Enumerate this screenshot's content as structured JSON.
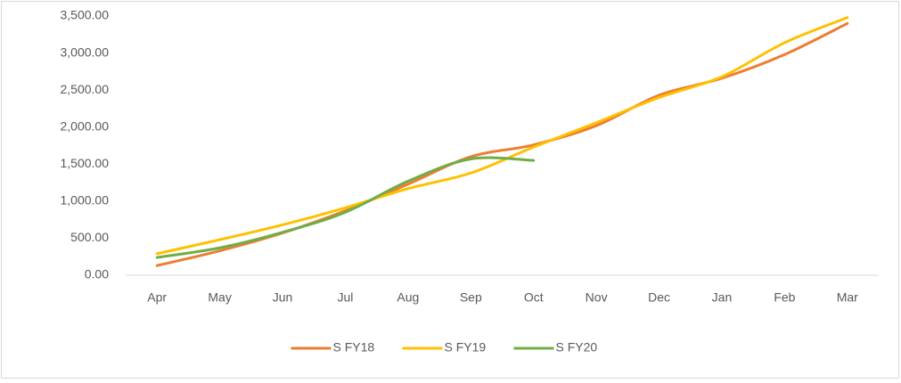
{
  "chart_data": {
    "type": "line",
    "categories": [
      "Apr",
      "May",
      "Jun",
      "Jul",
      "Aug",
      "Sep",
      "Oct",
      "Nov",
      "Dec",
      "Jan",
      "Feb",
      "Mar"
    ],
    "series": [
      {
        "name": "S FY18",
        "color": "#ED7D31",
        "values": [
          130,
          330,
          570,
          870,
          1230,
          1600,
          1760,
          2020,
          2430,
          2660,
          2980,
          3400
        ]
      },
      {
        "name": "S FY19",
        "color": "#FFC000",
        "values": [
          290,
          480,
          680,
          910,
          1170,
          1380,
          1730,
          2060,
          2400,
          2680,
          3140,
          3480
        ]
      },
      {
        "name": "S FY20",
        "color": "#70AD47",
        "values": [
          240,
          370,
          580,
          850,
          1270,
          1570,
          1550,
          null,
          null,
          null,
          null,
          null
        ]
      }
    ],
    "ylim": [
      0,
      3500
    ],
    "yticks": [
      {
        "value": 0,
        "label": "0.00"
      },
      {
        "value": 500,
        "label": "500.00"
      },
      {
        "value": 1000,
        "label": "1,000.00"
      },
      {
        "value": 1500,
        "label": "1,500.00"
      },
      {
        "value": 2000,
        "label": "2,000.00"
      },
      {
        "value": 2500,
        "label": "2,500.00"
      },
      {
        "value": 3000,
        "label": "3,000.00"
      },
      {
        "value": 3500,
        "label": "3,500.00"
      }
    ],
    "grid": false,
    "legend": "bottom"
  }
}
